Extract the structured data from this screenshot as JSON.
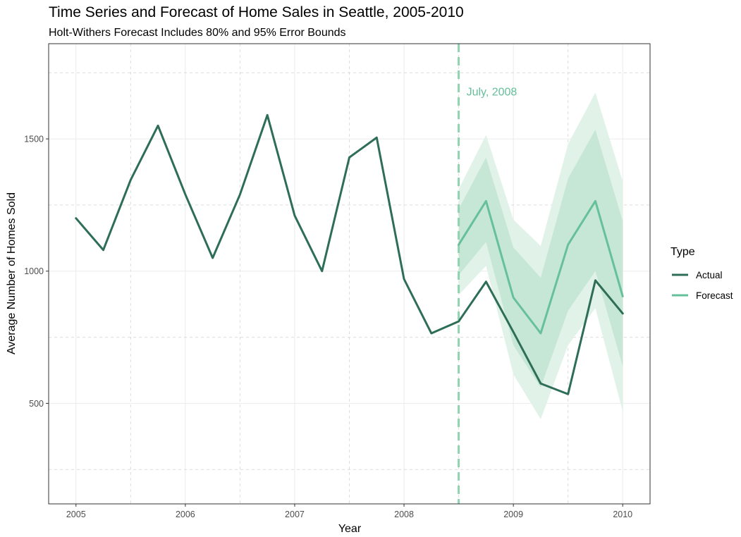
{
  "chart_data": {
    "type": "line",
    "title": "Time Series and Forecast of Home Sales in Seattle, 2005-2010",
    "subtitle": "Holt-Withers Forecast Includes 80% and 95% Error Bounds",
    "xlabel": "Year",
    "ylabel": "Average Number of Homes Sold",
    "xlim": [
      2004.75,
      2010.25
    ],
    "ylim": [
      120,
      1860
    ],
    "x_ticks": [
      2005,
      2006,
      2007,
      2008,
      2009,
      2010
    ],
    "x_tick_labels": [
      "2005",
      "2006",
      "2007",
      "2008",
      "2009",
      "2010"
    ],
    "y_ticks": [
      500,
      1000,
      1500
    ],
    "y_tick_labels": [
      "500",
      "1000",
      "1500"
    ],
    "grid": true,
    "legend": {
      "title": "Type",
      "position": "right",
      "entries": [
        "Actual",
        "Forecast"
      ]
    },
    "colors": {
      "actual": "#2e6e57",
      "forecast": "#66c09a",
      "band80": "#c7e7d6",
      "band95": "#e1f2e8",
      "vline": "#8fd3b1",
      "panel_border": "#333333",
      "grid": "#ebebeb",
      "grid_minor": "#dcdcdc"
    },
    "series": [
      {
        "name": "Actual",
        "x": [
          2005.0,
          2005.25,
          2005.5,
          2005.75,
          2006.0,
          2006.25,
          2006.5,
          2006.75,
          2007.0,
          2007.25,
          2007.5,
          2007.75,
          2008.0,
          2008.25,
          2008.5,
          2008.75,
          2009.0,
          2009.25,
          2009.5,
          2009.75,
          2010.0
        ],
        "y": [
          1200,
          1080,
          1345,
          1550,
          1290,
          1050,
          1290,
          1590,
          1210,
          1000,
          1430,
          1505,
          970,
          765,
          810,
          960,
          770,
          575,
          535,
          965,
          840
        ]
      },
      {
        "name": "Forecast",
        "x": [
          2008.5,
          2008.75,
          2009.0,
          2009.25,
          2009.5,
          2009.75,
          2010.0
        ],
        "y": [
          1100,
          1265,
          900,
          765,
          1100,
          1265,
          905
        ],
        "lower80": [
          985,
          1110,
          720,
          560,
          850,
          1000,
          640
        ],
        "upper80": [
          1235,
          1430,
          1090,
          975,
          1350,
          1535,
          1190
        ],
        "lower95": [
          910,
          1020,
          610,
          440,
          720,
          860,
          470
        ],
        "upper95": [
          1310,
          1515,
          1195,
          1095,
          1480,
          1675,
          1340
        ]
      }
    ],
    "annotations": [
      {
        "type": "vline",
        "x": 2008.5,
        "style": "dashed"
      },
      {
        "type": "text",
        "text": "July, 2008",
        "x": 2008.5,
        "y": 1680
      }
    ]
  }
}
